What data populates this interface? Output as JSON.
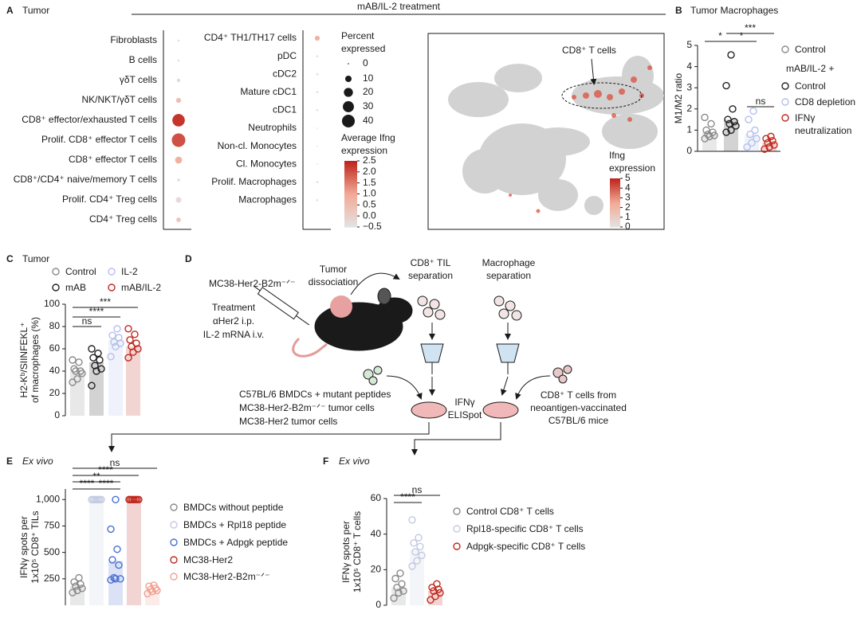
{
  "chart_data": [
    {
      "type": "dotplot",
      "panel": "A",
      "title": "Tumor",
      "header": "mAB/IL-2 treatment",
      "columns": [
        {
          "categories": [
            "Fibroblasts",
            "B cells",
            "γδT cells",
            "NK/NKT/γδT cells",
            "CD8⁺ effector/exhausted T cells",
            "Prolif. CD8⁺ effector T cells",
            "CD8⁺ effector T cells",
            "CD8⁺/CD4⁺ naive/memory T cells",
            "Prolif. CD4⁺ Treg cells",
            "CD4⁺ Treg cells"
          ],
          "percent": [
            1,
            1,
            3,
            6,
            38,
            45,
            12,
            2,
            8,
            5
          ],
          "average": [
            -0.3,
            -0.4,
            -0.2,
            0.5,
            2.3,
            2.0,
            0.8,
            -0.3,
            -0.3,
            0.3
          ]
        },
        {
          "categories": [
            "CD4⁺ TH1/TH17 cells",
            "pDC",
            "cDC2",
            "Mature cDC1",
            "cDC1",
            "Neutrophils",
            "Non-cl. Monocytes",
            "Cl. Monocytes",
            "Prolif. Macrophages",
            "Macrophages"
          ],
          "percent": [
            6,
            1,
            1,
            1,
            1,
            0.5,
            0.5,
            0.5,
            1,
            1
          ],
          "average": [
            0.8,
            -0.4,
            -0.4,
            -0.3,
            -0.4,
            -0.5,
            -0.5,
            -0.5,
            -0.4,
            -0.4
          ]
        }
      ],
      "size_legend": {
        "title": "Percent expressed",
        "values": [
          0,
          10,
          20,
          30,
          40
        ]
      },
      "color_legend": {
        "title": "Average Ifng expression",
        "lim": [
          -0.5,
          2.5
        ],
        "ticks": [
          2.5,
          {
            "value": 2,
            "label": "2.0"
          },
          1.5,
          {
            "value": 1,
            "label": "1.0"
          },
          0.5,
          {
            "value": 0,
            "label": "0.0"
          },
          {
            "value": -0.5,
            "label": "−0.5"
          }
        ]
      }
    },
    {
      "type": "umap",
      "annotation": "CD8⁺ T cells",
      "colorbar": {
        "title": "Ifng expression",
        "lim": [
          0,
          5
        ],
        "ticks": [
          5,
          4,
          3,
          2,
          1,
          0
        ]
      }
    },
    {
      "type": "strip",
      "panel": "B",
      "title": "Tumor Macrophages",
      "ylabel": [
        "M1/M2 ratio"
      ],
      "ylim": [
        0,
        5
      ],
      "yticks": [
        0,
        1,
        2,
        3,
        4,
        5
      ],
      "legend_group": "mAB/IL-2 +",
      "series": [
        {
          "name": "Control",
          "color": "#8a8a8a",
          "mean": 0.9,
          "points": [
            0.6,
            0.7,
            0.75,
            0.8,
            0.9,
            1.0,
            1.3,
            1.6
          ]
        },
        {
          "name": "Control",
          "color": "#222222",
          "mean": 1.5,
          "points": [
            0.9,
            1.0,
            1.2,
            1.3,
            1.4,
            1.5,
            2.0,
            3.1,
            4.55
          ]
        },
        {
          "name": "CD8 depletion",
          "color": "#b4c0ea",
          "mean": 0.8,
          "points": [
            0.2,
            0.4,
            0.6,
            0.8,
            1.0,
            1.5,
            1.9
          ]
        },
        {
          "name": "IFNγ neutralization",
          "color": "#c0281e",
          "mean": 0.4,
          "points": [
            0.1,
            0.2,
            0.3,
            0.4,
            0.5,
            0.6,
            0.7
          ]
        }
      ],
      "significance": [
        "*",
        "*",
        "***",
        "ns"
      ]
    },
    {
      "type": "strip",
      "panel": "C",
      "title": "Tumor",
      "ylabel": [
        "H2-Kᵇ/SIINFEKL⁺",
        "of macrophages (%)"
      ],
      "ylim": [
        0,
        100
      ],
      "yticks": [
        0,
        20,
        40,
        60,
        80,
        100
      ],
      "series": [
        {
          "name": "Control",
          "color": "#8a8a8a",
          "mean": 40,
          "points": [
            30,
            33,
            38,
            40,
            40,
            42,
            48,
            50
          ]
        },
        {
          "name": "mAB",
          "color": "#222222",
          "mean": 48,
          "points": [
            27,
            40,
            42,
            45,
            50,
            52,
            56,
            60
          ]
        },
        {
          "name": "IL-2",
          "color": "#b4c0ea",
          "mean": 68,
          "points": [
            53,
            62,
            65,
            66,
            70,
            72,
            78
          ]
        },
        {
          "name": "mAB/IL-2",
          "color": "#c0281e",
          "mean": 62,
          "points": [
            52,
            57,
            60,
            62,
            65,
            68,
            73,
            78
          ]
        }
      ],
      "significance": [
        "ns",
        "****",
        "***"
      ]
    },
    {
      "type": "strip",
      "panel": "E",
      "title": "Ex vivo",
      "ylabel": [
        "IFNγ spots per",
        "1x10⁵ CD8⁺ TILs"
      ],
      "ylim": [
        0,
        1100
      ],
      "yticks": [
        250,
        500,
        750,
        {
          "value": 1000,
          "label": "1,000"
        }
      ],
      "series": [
        {
          "name": "BMDCs without peptide",
          "color": "#8a8a8a",
          "mean": 180,
          "points": [
            120,
            140,
            160,
            180,
            200,
            220,
            260
          ]
        },
        {
          "name": "BMDCs + Rpl18 peptide",
          "color": "#c4cbe0",
          "mean": 1000,
          "points": [
            1000,
            1000,
            1000,
            1000,
            1000,
            1000,
            1000
          ]
        },
        {
          "name": "BMDCs + Adpgk peptide",
          "color": "#4a6fd0",
          "mean": 420,
          "points": [
            240,
            250,
            250,
            260,
            380,
            430,
            530,
            720,
            1000
          ]
        },
        {
          "name": "MC38-Her2",
          "color": "#c0281e",
          "mean": 1000,
          "points": [
            1000,
            1000,
            1000,
            1000,
            1000,
            1000,
            1000,
            1000
          ]
        },
        {
          "name": "MC38-Her2-B2m⁻ᐟ⁻",
          "color": "#f0a090",
          "mean": 150,
          "points": [
            110,
            130,
            140,
            150,
            160,
            180,
            190
          ]
        }
      ],
      "significance": [
        "ns",
        "****",
        "**",
        "****",
        "****"
      ]
    },
    {
      "type": "strip",
      "panel": "F",
      "title": "Ex vivo",
      "ylabel": [
        "IFNγ spots per",
        "1x10⁵ CD8⁺ T cells"
      ],
      "ylim": [
        0,
        60
      ],
      "yticks": [
        0,
        20,
        40,
        60
      ],
      "series": [
        {
          "name": "Control CD8⁺ T cells",
          "color": "#8a8a8a",
          "mean": 10,
          "points": [
            4,
            7,
            8,
            10,
            12,
            15,
            18
          ]
        },
        {
          "name": "Rpl18-specific CD8⁺ T cells",
          "color": "#c4cbe0",
          "mean": 31,
          "points": [
            22,
            25,
            28,
            30,
            33,
            35,
            38,
            48
          ]
        },
        {
          "name": "Adpgk-specific CD8⁺ T cells",
          "color": "#c0281e",
          "mean": 8,
          "points": [
            3,
            5,
            7,
            8,
            9,
            10,
            12
          ]
        }
      ],
      "significance": [
        "ns",
        "****"
      ]
    }
  ],
  "diagram": {
    "panel": "D",
    "mouse": "MC38-Her2-B2m⁻ᐟ⁻",
    "treatment": [
      "Treatment",
      "αHer2 i.p.",
      "IL-2 mRNA i.v."
    ],
    "dissociation": "Tumor dissociation",
    "til": "CD8⁺ TIL separation",
    "macrophage": "Macrophage separation",
    "targets": [
      "C57BL/6 BMDCs + mutant peptides",
      "MC38-Her2-B2m⁻ᐟ⁻ tumor cells",
      "MC38-Her2 tumor cells"
    ],
    "elispot": "IFNγ ELISpot",
    "vaccinated": "CD8⁺ T cells from neoantigen-vaccinated C57BL/6 mice"
  }
}
